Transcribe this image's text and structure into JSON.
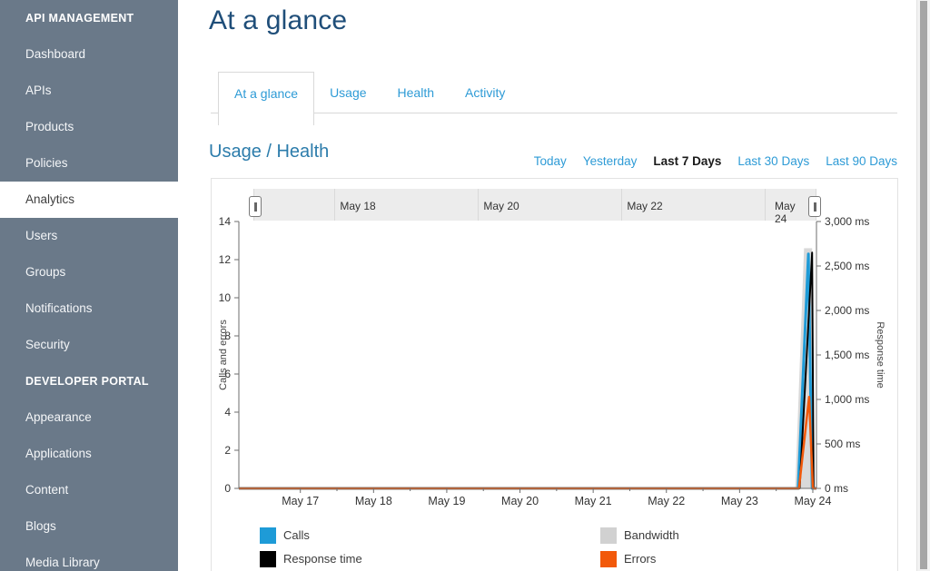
{
  "colors": {
    "accent_link_blue": "#2e9bd6",
    "title_blue": "#1f4e79",
    "heading_blue": "#2c7cab",
    "sidebar_background": "#6a7989",
    "calls_blue": "#1e9bd7",
    "bandwidth_gray": "#d6d6d6",
    "response_time_black": "#000000",
    "errors_orange": "#f2590a"
  },
  "sidebar": {
    "selected": "Analytics",
    "sections": [
      {
        "header": "API MANAGEMENT",
        "items": [
          {
            "label": "Dashboard"
          },
          {
            "label": "APIs"
          },
          {
            "label": "Products"
          },
          {
            "label": "Policies"
          },
          {
            "label": "Analytics"
          },
          {
            "label": "Users"
          },
          {
            "label": "Groups"
          },
          {
            "label": "Notifications"
          },
          {
            "label": "Security"
          }
        ]
      },
      {
        "header": "DEVELOPER PORTAL",
        "items": [
          {
            "label": "Appearance"
          },
          {
            "label": "Applications"
          },
          {
            "label": "Content"
          },
          {
            "label": "Blogs"
          },
          {
            "label": "Media Library"
          }
        ]
      }
    ]
  },
  "header": {
    "title": "At a glance"
  },
  "tabs": [
    {
      "label": "At a glance",
      "active": true
    },
    {
      "label": "Usage",
      "active": false
    },
    {
      "label": "Health",
      "active": false
    },
    {
      "label": "Activity",
      "active": false
    }
  ],
  "section": {
    "title": "Usage / Health"
  },
  "time_ranges": [
    {
      "label": "Today",
      "active": false
    },
    {
      "label": "Yesterday",
      "active": false
    },
    {
      "label": "Last 7 Days",
      "active": true
    },
    {
      "label": "Last 30 Days",
      "active": false
    },
    {
      "label": "Last 90 Days",
      "active": false
    }
  ],
  "chart_data": {
    "type": "line",
    "title": "Usage / Health",
    "x_axis": {
      "domain_days": [
        16.16,
        24.05
      ],
      "tick_days": [
        17,
        18,
        19,
        20,
        21,
        22,
        23,
        24
      ],
      "tick_labels": [
        "May 17",
        "May 18",
        "May 19",
        "May 20",
        "May 21",
        "May 22",
        "May 23",
        "May 24"
      ]
    },
    "y_left": {
      "label": "Calls and errors",
      "range": [
        0,
        14
      ],
      "ticks": [
        0,
        2,
        4,
        6,
        8,
        10,
        12,
        14
      ]
    },
    "y_right": {
      "label": "Response time",
      "unit": "ms",
      "range": [
        0,
        3000
      ],
      "tick_values": [
        0,
        500,
        1000,
        1500,
        2000,
        2500,
        3000
      ],
      "tick_labels": [
        "0 ms",
        "500 ms",
        "1,000 ms",
        "1,500 ms",
        "2,000 ms",
        "2,500 ms",
        "3,000 ms"
      ]
    },
    "grid": false,
    "series": [
      {
        "name": "Bandwidth",
        "type": "area",
        "axis": "left",
        "color": "#d9d9d9",
        "width": 1,
        "points": [
          [
            23.76,
            0
          ],
          [
            23.88,
            12.6
          ],
          [
            23.99,
            12.6
          ],
          [
            24.03,
            0
          ]
        ]
      },
      {
        "name": "Calls",
        "type": "line",
        "axis": "left",
        "color": "#1e9bd7",
        "width": 3,
        "points": [
          [
            16.16,
            0
          ],
          [
            23.8,
            0
          ],
          [
            23.94,
            12.3
          ],
          [
            23.99,
            0
          ],
          [
            24.05,
            0
          ]
        ]
      },
      {
        "name": "Response time",
        "type": "line",
        "axis": "right",
        "color": "#000000",
        "width": 2,
        "points": [
          [
            16.16,
            0
          ],
          [
            23.82,
            0
          ],
          [
            23.99,
            2650
          ],
          [
            24.01,
            0
          ],
          [
            24.05,
            0
          ]
        ]
      },
      {
        "name": "Errors",
        "type": "line",
        "axis": "left",
        "color": "#f2590a",
        "width": 2.5,
        "points": [
          [
            16.16,
            0
          ],
          [
            23.81,
            0
          ],
          [
            23.95,
            4.8
          ],
          [
            24.0,
            0
          ],
          [
            24.05,
            0
          ]
        ]
      }
    ],
    "range_slider": {
      "labels": [
        "May 18",
        "May 20",
        "May 22",
        "May 24"
      ]
    }
  },
  "legend": [
    {
      "label": "Calls",
      "color": "#1e9bd7"
    },
    {
      "label": "Bandwidth",
      "color": "#d1d1d1"
    },
    {
      "label": "Response time",
      "color": "#000000"
    },
    {
      "label": "Errors",
      "color": "#f2590a"
    }
  ]
}
